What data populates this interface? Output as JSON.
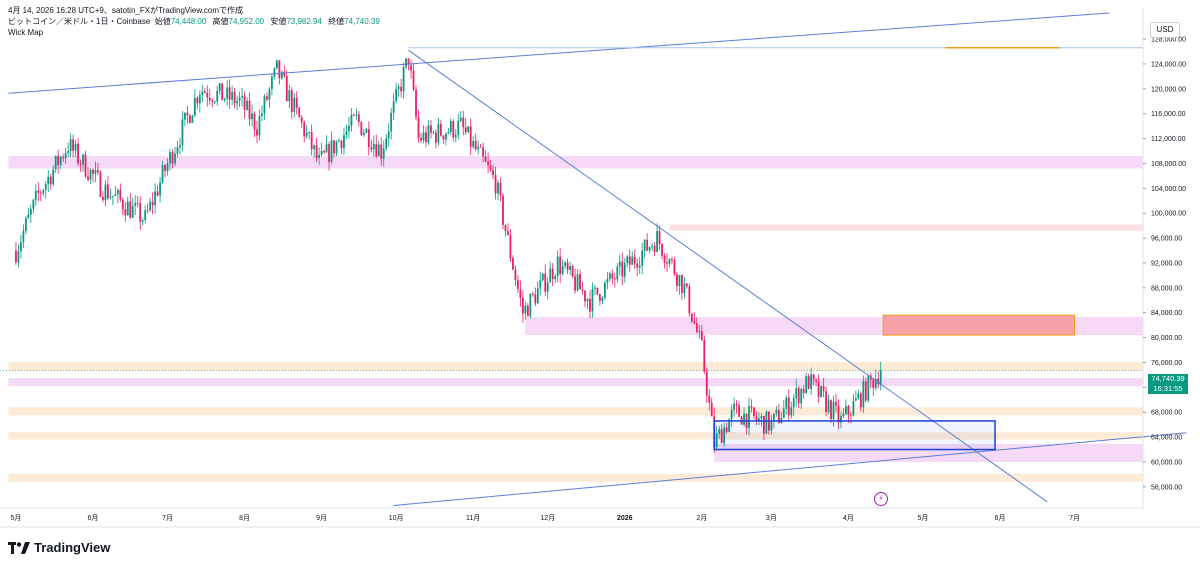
{
  "header": {
    "line1": "4月 14, 2026 16:28 UTC+9、satotin_FXがTradingView.comで作成",
    "symbol": "ビットコイン／米ドル・1日・Coinbase",
    "open_label": "始値",
    "open": "74,448.00",
    "high_label": "高値",
    "high": "74,952.00",
    "low_label": "安値",
    "low": "73,982.94",
    "close_label": "終値",
    "close": "74,740.39",
    "indicator": "Wick Map"
  },
  "currency": "USD",
  "last_price": "74,740.39",
  "countdown": "16:31:55",
  "logo": "TradingView",
  "colors": {
    "up": "#089981",
    "down": "#f23645",
    "wick_down": "#e91e63",
    "trend_line": "#5b7fd6",
    "zone_pink": "#f5d9f7",
    "zone_orange": "#fdebd7",
    "box_blue": "#1c3fd6",
    "box_red": "#f7a1a8",
    "orange_line": "#f59d12"
  },
  "chart_data": {
    "type": "candlestick",
    "x_labels": [
      "5月",
      "6月",
      "7月",
      "8月",
      "9月",
      "10月",
      "11月",
      "12月",
      "2026",
      "2月",
      "3月",
      "4月",
      "5月",
      "6月",
      "7月"
    ],
    "y_ticks": [
      "56,000.00",
      "60,000.00",
      "64,000.00",
      "68,000.00",
      "72,000.00",
      "76,000.00",
      "80,000.00",
      "84,000.00",
      "88,000.00",
      "92,000.00",
      "96,000.00",
      "100,000.00",
      "104,000.00",
      "108,000.00",
      "112,000.00",
      "116,000.00",
      "120,000.00",
      "124,000.00",
      "128,000.00"
    ],
    "ylim": [
      52600,
      133000
    ],
    "price_path": [
      {
        "date": "2025-05-01",
        "price": 94000
      },
      {
        "date": "2025-05-10",
        "price": 103000
      },
      {
        "date": "2025-05-22",
        "price": 111000
      },
      {
        "date": "2025-06-05",
        "price": 104000
      },
      {
        "date": "2025-06-22",
        "price": 99000
      },
      {
        "date": "2025-06-30",
        "price": 107000
      },
      {
        "date": "2025-07-14",
        "price": 120000
      },
      {
        "date": "2025-07-30",
        "price": 118000
      },
      {
        "date": "2025-08-06",
        "price": 114000
      },
      {
        "date": "2025-08-14",
        "price": 123000
      },
      {
        "date": "2025-08-31",
        "price": 108000
      },
      {
        "date": "2025-09-15",
        "price": 115000
      },
      {
        "date": "2025-09-25",
        "price": 110000
      },
      {
        "date": "2025-10-06",
        "price": 125000
      },
      {
        "date": "2025-10-10",
        "price": 112000
      },
      {
        "date": "2025-10-27",
        "price": 114000
      },
      {
        "date": "2025-11-10",
        "price": 105000
      },
      {
        "date": "2025-11-21",
        "price": 84000
      },
      {
        "date": "2025-12-05",
        "price": 92000
      },
      {
        "date": "2025-12-18",
        "price": 86000
      },
      {
        "date": "2026-01-14",
        "price": 96000
      },
      {
        "date": "2026-01-25",
        "price": 88000
      },
      {
        "date": "2026-02-01",
        "price": 78000
      },
      {
        "date": "2026-02-06",
        "price": 63000
      },
      {
        "date": "2026-02-14",
        "price": 68000
      },
      {
        "date": "2026-03-01",
        "price": 66000
      },
      {
        "date": "2026-03-16",
        "price": 73000
      },
      {
        "date": "2026-03-29",
        "price": 66500
      },
      {
        "date": "2026-04-14",
        "price": 74740
      }
    ],
    "trend_lines": [
      {
        "from": [
          "2025-04-28",
          119300
        ],
        "to": [
          "2026-07-15",
          132200
        ]
      },
      {
        "from": [
          "2025-10-06",
          126200
        ],
        "to": [
          "2026-06-20",
          53600
        ]
      },
      {
        "from": [
          "2025-09-30",
          53000
        ],
        "to": [
          "2026-08-15",
          64700
        ]
      }
    ],
    "horizontal_zones": [
      {
        "y": [
          107200,
          109200
        ],
        "from": "2025-04-28",
        "color": "pink"
      },
      {
        "y": [
          97200,
          98200
        ],
        "from": "2026-01-19",
        "color": "lightred"
      },
      {
        "y": [
          80400,
          83300
        ],
        "from": "2025-11-22",
        "color": "pink"
      },
      {
        "y": [
          74600,
          76100
        ],
        "from": "2025-04-28",
        "color": "orange"
      },
      {
        "y": [
          72200,
          73500
        ],
        "from": "2025-04-28",
        "color": "pink"
      },
      {
        "y": [
          67500,
          68800
        ],
        "from": "2025-04-28",
        "color": "orange"
      },
      {
        "y": [
          63600,
          64800
        ],
        "from": "2025-04-28",
        "color": "orange"
      },
      {
        "y": [
          60000,
          62900
        ],
        "from": "2026-02-06",
        "color": "pink"
      },
      {
        "y": [
          56800,
          58100
        ],
        "from": "2025-04-28",
        "color": "orange"
      }
    ],
    "boxes": [
      {
        "x": [
          "2026-04-15",
          "2026-07-01"
        ],
        "y": [
          80400,
          83600
        ],
        "color": "red"
      },
      {
        "x": [
          "2026-02-06",
          "2026-05-30"
        ],
        "y": [
          62000,
          66600
        ],
        "color": "blue"
      }
    ],
    "orange_level": {
      "y": 126600,
      "x": [
        "2026-05-10",
        "2026-06-25"
      ]
    },
    "resistance_line": {
      "y": 126600,
      "from": "2025-10-06"
    },
    "current_price": 74740.39
  }
}
